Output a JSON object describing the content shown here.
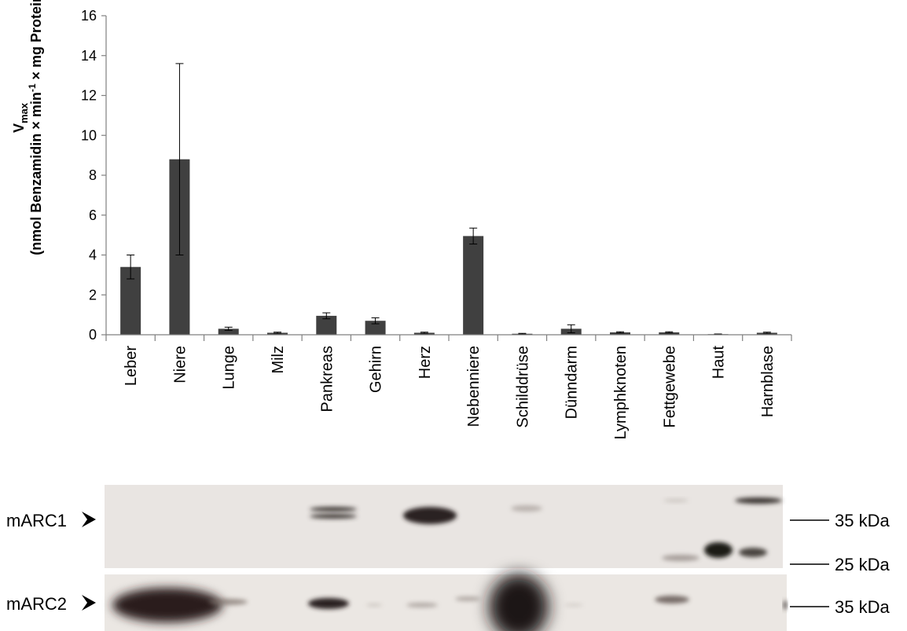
{
  "chart_data": {
    "type": "bar",
    "categories": [
      "Leber",
      "Niere",
      "Lunge",
      "Milz",
      "Pankreas",
      "Gehirn",
      "Herz",
      "Nebenniere",
      "Schilddrüse",
      "Dünndarm",
      "Lymphknoten",
      "Fettgewebe",
      "Haut",
      "Harnblase"
    ],
    "values": [
      3.4,
      8.8,
      0.3,
      0.1,
      0.95,
      0.7,
      0.1,
      4.95,
      0.05,
      0.3,
      0.12,
      0.12,
      0.03,
      0.1
    ],
    "errors": [
      0.6,
      4.8,
      0.08,
      0.03,
      0.15,
      0.15,
      0.03,
      0.4,
      0.02,
      0.2,
      0.03,
      0.03,
      0.01,
      0.03
    ],
    "ylim": [
      0,
      16
    ],
    "yticks": [
      "0",
      "2",
      "4",
      "6",
      "8",
      "10",
      "12",
      "14",
      "16"
    ],
    "ylabel_main": "V",
    "ylabel_sub": "max",
    "ylabel_line2": "(nmol Benzamidin × min",
    "ylabel_line2_sup1": "-1",
    "ylabel_line2_mid": " × mg Protein",
    "ylabel_line2_sup2": "-1",
    "ylabel_line2_end": ")",
    "bar_color": "#404040"
  },
  "blots": [
    {
      "label": "mARC1",
      "markers": [
        "35 kDa",
        "25 kDa"
      ]
    },
    {
      "label": "mARC2",
      "markers": [
        "35 kDa"
      ]
    }
  ]
}
